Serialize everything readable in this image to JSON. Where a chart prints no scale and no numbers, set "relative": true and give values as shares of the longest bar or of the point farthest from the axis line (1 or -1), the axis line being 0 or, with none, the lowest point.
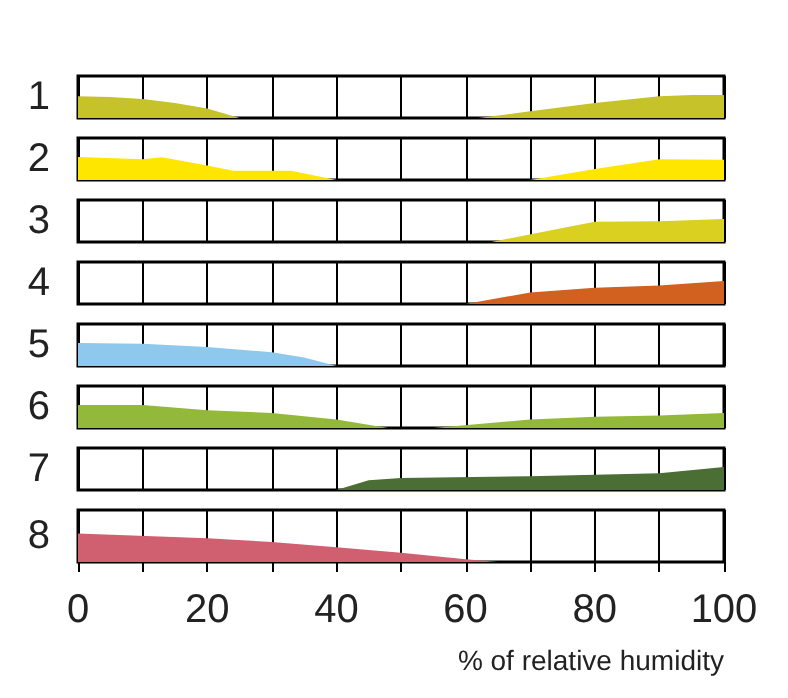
{
  "chart_data": [
    {
      "type": "area",
      "ylabel": "1",
      "color": "#c5c22a",
      "relative": true,
      "x": [
        0,
        5,
        10,
        15,
        20,
        25,
        45,
        62,
        70,
        80,
        90,
        95,
        100
      ],
      "values": [
        0.94,
        0.91,
        0.82,
        0.65,
        0.41,
        0,
        null,
        0,
        0.29,
        0.65,
        0.94,
        1,
        1
      ],
      "xlim": [
        0,
        100
      ],
      "xticks": [
        0,
        {
          "value": 10,
          "label": null
        },
        20,
        {
          "value": 30,
          "label": null
        },
        40,
        {
          "value": 50,
          "label": null
        },
        60,
        {
          "value": 70,
          "label": null
        },
        80,
        {
          "value": 90,
          "label": null
        },
        100
      ],
      "grid": "x",
      "tick_labels": false
    },
    {
      "type": "area",
      "ylabel": "2",
      "color": "#ffe600",
      "relative": true,
      "x": [
        0,
        10,
        13,
        20,
        24,
        33,
        40,
        55,
        70,
        80,
        90,
        100
      ],
      "values": [
        1,
        0.9,
        0.98,
        0.63,
        0.4,
        0.4,
        0,
        null,
        0,
        0.48,
        0.9,
        0.88
      ],
      "xlim": [
        0,
        100
      ],
      "xticks": [
        0,
        {
          "value": 10,
          "label": null
        },
        20,
        {
          "value": 30,
          "label": null
        },
        40,
        {
          "value": 50,
          "label": null
        },
        60,
        {
          "value": 70,
          "label": null
        },
        80,
        {
          "value": 90,
          "label": null
        },
        100
      ],
      "grid": "x",
      "tick_labels": false
    },
    {
      "type": "area",
      "ylabel": "3",
      "color": "#d9d020",
      "relative": true,
      "x": [
        64,
        75,
        80,
        90,
        100
      ],
      "values": [
        0,
        0.61,
        0.88,
        0.9,
        1
      ],
      "xlim": [
        0,
        100
      ],
      "xticks": [
        0,
        {
          "value": 10,
          "label": null
        },
        20,
        {
          "value": 30,
          "label": null
        },
        40,
        {
          "value": 50,
          "label": null
        },
        60,
        {
          "value": 70,
          "label": null
        },
        80,
        {
          "value": 90,
          "label": null
        },
        100
      ],
      "grid": "x",
      "tick_labels": false
    },
    {
      "type": "area",
      "ylabel": "4",
      "color": "#d2601f",
      "relative": true,
      "x": [
        60,
        70,
        80,
        90,
        100
      ],
      "values": [
        0,
        0.5,
        0.7,
        0.8,
        1
      ],
      "xlim": [
        0,
        100
      ],
      "xticks": [
        0,
        {
          "value": 10,
          "label": null
        },
        20,
        {
          "value": 30,
          "label": null
        },
        40,
        {
          "value": 50,
          "label": null
        },
        60,
        {
          "value": 70,
          "label": null
        },
        80,
        {
          "value": 90,
          "label": null
        },
        100
      ],
      "grid": "x",
      "tick_labels": false
    },
    {
      "type": "area",
      "ylabel": "5",
      "color": "#8ec8ec",
      "relative": true,
      "x": [
        0,
        10,
        20,
        30,
        35,
        40
      ],
      "values": [
        1,
        0.96,
        0.82,
        0.6,
        0.37,
        0
      ],
      "xlim": [
        0,
        100
      ],
      "xticks": [
        0,
        {
          "value": 10,
          "label": null
        },
        20,
        {
          "value": 30,
          "label": null
        },
        40,
        {
          "value": 50,
          "label": null
        },
        60,
        {
          "value": 70,
          "label": null
        },
        80,
        {
          "value": 90,
          "label": null
        },
        100
      ],
      "grid": "x",
      "tick_labels": false
    },
    {
      "type": "area",
      "ylabel": "6",
      "color": "#93b93a",
      "relative": true,
      "x": [
        0,
        10,
        20,
        30,
        40,
        48,
        52,
        55,
        70,
        80,
        90,
        100
      ],
      "values": [
        1,
        1,
        0.77,
        0.65,
        0.37,
        0,
        null,
        0,
        0.37,
        0.49,
        0.54,
        0.65
      ],
      "xlim": [
        0,
        100
      ],
      "xticks": [
        0,
        {
          "value": 10,
          "label": null
        },
        20,
        {
          "value": 30,
          "label": null
        },
        40,
        {
          "value": 50,
          "label": null
        },
        60,
        {
          "value": 70,
          "label": null
        },
        80,
        {
          "value": 90,
          "label": null
        },
        100
      ],
      "grid": "x",
      "tick_labels": false
    },
    {
      "type": "area",
      "ylabel": "7",
      "color": "#4a6e34",
      "relative": true,
      "x": [
        40,
        45,
        50,
        70,
        90,
        100
      ],
      "values": [
        0,
        0.42,
        0.52,
        0.6,
        0.73,
        1
      ],
      "xlim": [
        0,
        100
      ],
      "xticks": [
        0,
        {
          "value": 10,
          "label": null
        },
        20,
        {
          "value": 30,
          "label": null
        },
        40,
        {
          "value": 50,
          "label": null
        },
        60,
        {
          "value": 70,
          "label": null
        },
        80,
        {
          "value": 90,
          "label": null
        },
        100
      ],
      "grid": "x",
      "tick_labels": false
    },
    {
      "type": "area",
      "ylabel": "8",
      "xlabel": "% of relative humidity",
      "color": "#d06070",
      "relative": true,
      "x": [
        0,
        20,
        30,
        40,
        50,
        60,
        65
      ],
      "values": [
        1,
        0.83,
        0.7,
        0.52,
        0.32,
        0.1,
        0
      ],
      "xlim": [
        0,
        100
      ],
      "xticks": [
        0,
        {
          "value": 10,
          "label": null
        },
        20,
        {
          "value": 30,
          "label": null
        },
        40,
        {
          "value": 50,
          "label": null
        },
        60,
        {
          "value": 70,
          "label": null
        },
        80,
        {
          "value": 90,
          "label": null
        },
        100
      ],
      "grid": "x",
      "tick_labels": "x"
    }
  ]
}
